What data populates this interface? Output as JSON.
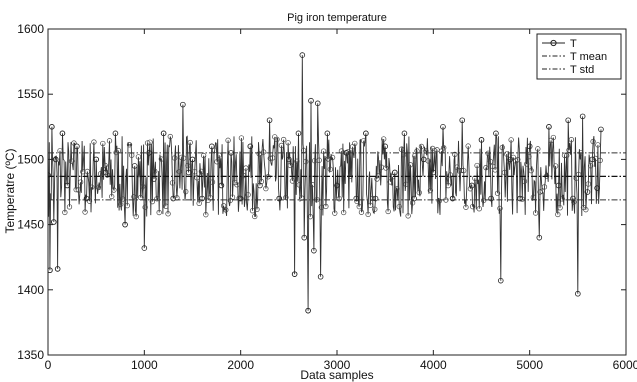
{
  "chart_data": {
    "type": "line",
    "title": "Pig iron temperature",
    "xlabel": "Data samples",
    "ylabel": "Temperatre (ºC)",
    "xlim": [
      0,
      6000
    ],
    "ylim": [
      1350,
      1600
    ],
    "xticks": [
      0,
      1000,
      2000,
      3000,
      4000,
      5000,
      6000
    ],
    "yticks": [
      1350,
      1400,
      1450,
      1500,
      1550,
      1600
    ],
    "grid": false,
    "legend_position": "top-right",
    "legend": [
      "T",
      "T mean",
      "T std"
    ],
    "series": [
      {
        "name": "T",
        "style": "line-circle-markers",
        "x": [
          0,
          20,
          40,
          60,
          80,
          100,
          150,
          200,
          300,
          400,
          500,
          600,
          700,
          800,
          900,
          1000,
          1050,
          1100,
          1200,
          1300,
          1400,
          1460,
          1500,
          1600,
          1700,
          1800,
          1900,
          2000,
          2100,
          2200,
          2300,
          2400,
          2500,
          2560,
          2600,
          2640,
          2660,
          2700,
          2730,
          2760,
          2800,
          2830,
          2900,
          3000,
          3100,
          3200,
          3300,
          3400,
          3500,
          3600,
          3700,
          3800,
          3900,
          4000,
          4100,
          4200,
          4300,
          4400,
          4500,
          4600,
          4650,
          4700,
          4800,
          4900,
          5000,
          5100,
          5200,
          5300,
          5400,
          5450,
          5500,
          5550,
          5600,
          5650,
          5700,
          5740
        ],
        "y": [
          1488,
          1415,
          1525,
          1452,
          1500,
          1416,
          1520,
          1480,
          1510,
          1470,
          1500,
          1490,
          1520,
          1450,
          1495,
          1432,
          1505,
          1485,
          1520,
          1470,
          1542,
          1490,
          1500,
          1470,
          1510,
          1480,
          1505,
          1470,
          1510,
          1480,
          1530,
          1470,
          1500,
          1412,
          1520,
          1580,
          1440,
          1384,
          1545,
          1430,
          1543,
          1410,
          1520,
          1480,
          1505,
          1470,
          1520,
          1470,
          1510,
          1490,
          1520,
          1470,
          1500,
          1490,
          1525,
          1470,
          1530,
          1480,
          1515,
          1470,
          1520,
          1407,
          1500,
          1470,
          1510,
          1440,
          1525,
          1480,
          1530,
          1470,
          1397,
          1533,
          1475,
          1500,
          1478,
          1523
        ]
      },
      {
        "name": "T mean",
        "style": "dash-dot",
        "value": 1487
      },
      {
        "name": "T std",
        "style": "dash-dot",
        "values": [
          1505,
          1469
        ]
      }
    ]
  }
}
